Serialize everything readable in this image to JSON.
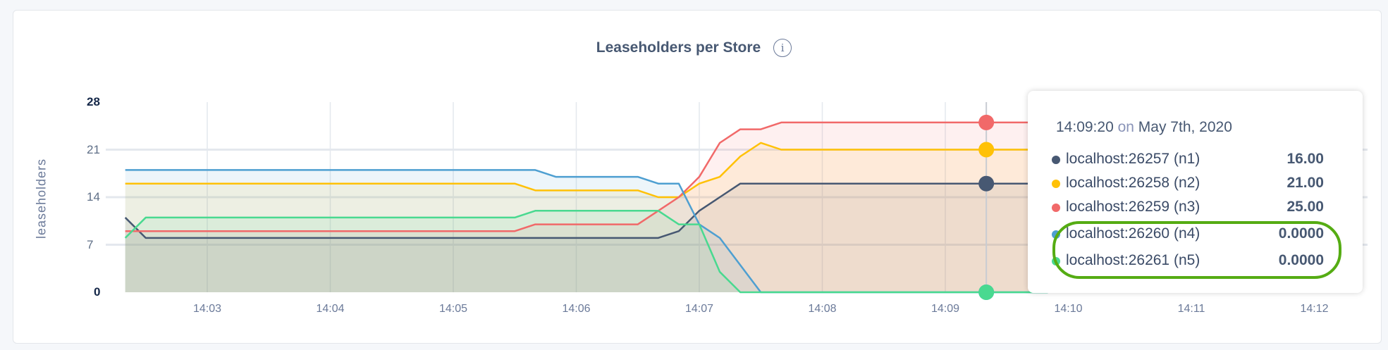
{
  "chart_data": {
    "type": "area",
    "title": "Leaseholders per Store",
    "ylabel": "leaseholders",
    "xlabel": "",
    "ylim": [
      0,
      28
    ],
    "yticks": [
      "0",
      "7",
      "14",
      "21",
      "28"
    ],
    "xticks": [
      "14:03",
      "14:04",
      "14:05",
      "14:06",
      "14:07",
      "14:08",
      "14:09",
      "14:10",
      "14:11",
      "14:12"
    ],
    "grid": true,
    "series": [
      {
        "name": "localhost:26257 (n1)",
        "color": "#475872",
        "points": [
          [
            "14:02:20",
            11
          ],
          [
            "14:02:30",
            8
          ],
          [
            "14:06:40",
            8
          ],
          [
            "14:06:50",
            9
          ],
          [
            "14:07:00",
            12
          ],
          [
            "14:07:10",
            14
          ],
          [
            "14:07:20",
            16
          ],
          [
            "14:09:50",
            16
          ]
        ]
      },
      {
        "name": "localhost:26258 (n2)",
        "color": "#ffc107",
        "points": [
          [
            "14:02:20",
            16
          ],
          [
            "14:05:30",
            16
          ],
          [
            "14:05:40",
            15
          ],
          [
            "14:06:30",
            15
          ],
          [
            "14:06:40",
            14
          ],
          [
            "14:06:50",
            14
          ],
          [
            "14:07:00",
            16
          ],
          [
            "14:07:10",
            17
          ],
          [
            "14:07:20",
            20
          ],
          [
            "14:07:30",
            22
          ],
          [
            "14:07:40",
            21
          ],
          [
            "14:09:50",
            21
          ]
        ]
      },
      {
        "name": "localhost:26259 (n3)",
        "color": "#f16969",
        "points": [
          [
            "14:02:20",
            9
          ],
          [
            "14:05:30",
            9
          ],
          [
            "14:05:40",
            10
          ],
          [
            "14:06:30",
            10
          ],
          [
            "14:06:40",
            12
          ],
          [
            "14:06:50",
            14
          ],
          [
            "14:07:00",
            17
          ],
          [
            "14:07:10",
            22
          ],
          [
            "14:07:20",
            24
          ],
          [
            "14:07:30",
            24
          ],
          [
            "14:07:40",
            25
          ],
          [
            "14:09:50",
            25
          ]
        ]
      },
      {
        "name": "localhost:26260 (n4)",
        "color": "#4e9fd1",
        "points": [
          [
            "14:02:20",
            18
          ],
          [
            "14:05:40",
            18
          ],
          [
            "14:05:50",
            17
          ],
          [
            "14:06:30",
            17
          ],
          [
            "14:06:40",
            16
          ],
          [
            "14:06:50",
            16
          ],
          [
            "14:07:00",
            10
          ],
          [
            "14:07:10",
            8
          ],
          [
            "14:07:30",
            0
          ],
          [
            "14:09:50",
            0
          ]
        ]
      },
      {
        "name": "localhost:26261 (n5)",
        "color": "#49d990",
        "points": [
          [
            "14:02:20",
            8
          ],
          [
            "14:02:30",
            11
          ],
          [
            "14:05:30",
            11
          ],
          [
            "14:05:40",
            12
          ],
          [
            "14:06:40",
            12
          ],
          [
            "14:06:50",
            10
          ],
          [
            "14:07:00",
            10
          ],
          [
            "14:07:10",
            3
          ],
          [
            "14:07:20",
            0
          ],
          [
            "14:09:50",
            0
          ]
        ]
      }
    ],
    "hover_time": "14:09:20"
  },
  "tooltip": {
    "time": "14:09:20",
    "on": "on",
    "date": "May 7th, 2020",
    "rows": [
      {
        "name": "localhost:26257 (n1)",
        "value": "16.00",
        "color": "#475872"
      },
      {
        "name": "localhost:26258 (n2)",
        "value": "21.00",
        "color": "#ffc107"
      },
      {
        "name": "localhost:26259 (n3)",
        "value": "25.00",
        "color": "#f16969"
      },
      {
        "name": "localhost:26260 (n4)",
        "value": "0.0000",
        "color": "#4e9fd1"
      },
      {
        "name": "localhost:26261 (n5)",
        "value": "0.0000",
        "color": "#49d990"
      }
    ],
    "highlight_color": "#55ac13"
  },
  "info_icon": "info-circle-icon"
}
